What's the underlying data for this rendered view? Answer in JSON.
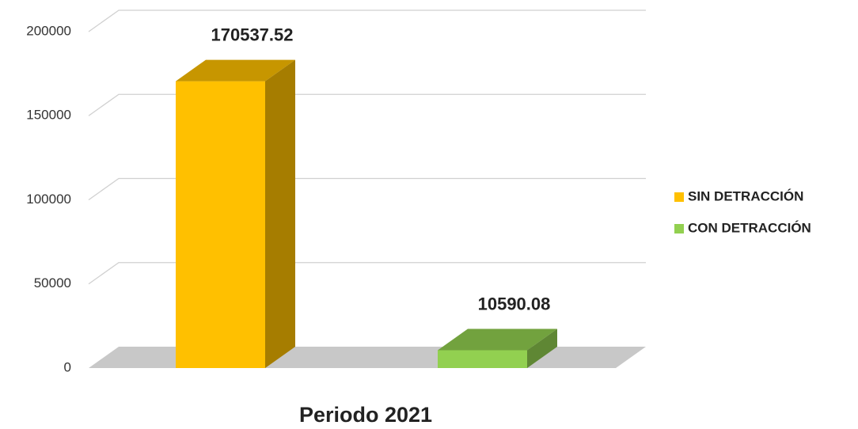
{
  "chart_data": {
    "type": "bar3d",
    "categories": [
      "Periodo 2021"
    ],
    "series": [
      {
        "name": "SIN DETRACCIÓN",
        "color": "#FFC000",
        "values": [
          170537.52
        ]
      },
      {
        "name": "CON DETRACCIÓN",
        "color": "#92D050",
        "values": [
          10590.08
        ]
      }
    ],
    "ylim": [
      0,
      200000
    ],
    "yticks": [
      0,
      50000,
      100000,
      150000,
      200000
    ],
    "grid": true,
    "legend": "right"
  }
}
